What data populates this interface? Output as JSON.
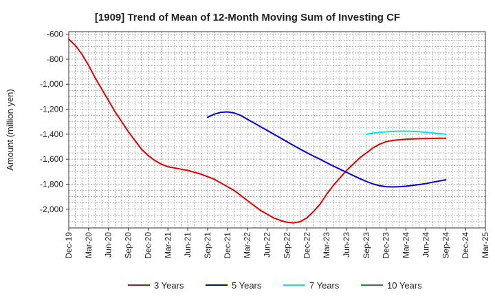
{
  "chart_data": {
    "type": "line",
    "title": "[1909]  Trend of Mean of 12-Month Moving Sum of Investing CF",
    "ylabel": "Amount (million yen)",
    "xlabel": "",
    "ylim": [
      -2150,
      -580
    ],
    "yticks": [
      -600,
      -800,
      -1000,
      -1200,
      -1400,
      -1600,
      -1800,
      -2000
    ],
    "ytick_labels": [
      "-600",
      "-800",
      "-1,000",
      "-1,200",
      "-1,400",
      "-1,600",
      "-1,800",
      "-2,000"
    ],
    "x_start": "2019-12",
    "x_end": "2025-03",
    "xtick_labels": [
      "Dec-19",
      "Mar-20",
      "Jun-20",
      "Sep-20",
      "Dec-20",
      "Mar-21",
      "Jun-21",
      "Sep-21",
      "Dec-21",
      "Mar-22",
      "Jun-22",
      "Sep-22",
      "Dec-22",
      "Mar-23",
      "Jun-23",
      "Sep-23",
      "Dec-23",
      "Mar-24",
      "Jun-24",
      "Sep-24",
      "Dec-24",
      "Mar-25"
    ],
    "grid": true,
    "legend_position": "bottom",
    "series": [
      {
        "name": "3 Years",
        "color": "#e00000",
        "points": [
          [
            "2019-12",
            -640
          ],
          [
            "2020-01",
            -690
          ],
          [
            "2020-02",
            -760
          ],
          [
            "2020-03",
            -850
          ],
          [
            "2020-04",
            -950
          ],
          [
            "2020-05",
            -1040
          ],
          [
            "2020-06",
            -1130
          ],
          [
            "2020-07",
            -1220
          ],
          [
            "2020-08",
            -1300
          ],
          [
            "2020-09",
            -1380
          ],
          [
            "2020-10",
            -1450
          ],
          [
            "2020-11",
            -1520
          ],
          [
            "2020-12",
            -1570
          ],
          [
            "2021-01",
            -1610
          ],
          [
            "2021-02",
            -1640
          ],
          [
            "2021-03",
            -1660
          ],
          [
            "2021-04",
            -1670
          ],
          [
            "2021-05",
            -1680
          ],
          [
            "2021-06",
            -1690
          ],
          [
            "2021-07",
            -1705
          ],
          [
            "2021-08",
            -1720
          ],
          [
            "2021-09",
            -1740
          ],
          [
            "2021-10",
            -1760
          ],
          [
            "2021-11",
            -1790
          ],
          [
            "2021-12",
            -1820
          ],
          [
            "2022-01",
            -1850
          ],
          [
            "2022-02",
            -1890
          ],
          [
            "2022-03",
            -1930
          ],
          [
            "2022-04",
            -1970
          ],
          [
            "2022-05",
            -2010
          ],
          [
            "2022-06",
            -2040
          ],
          [
            "2022-07",
            -2070
          ],
          [
            "2022-08",
            -2090
          ],
          [
            "2022-09",
            -2105
          ],
          [
            "2022-10",
            -2110
          ],
          [
            "2022-11",
            -2100
          ],
          [
            "2022-12",
            -2070
          ],
          [
            "2023-01",
            -2020
          ],
          [
            "2023-02",
            -1960
          ],
          [
            "2023-03",
            -1880
          ],
          [
            "2023-04",
            -1810
          ],
          [
            "2023-05",
            -1750
          ],
          [
            "2023-06",
            -1690
          ],
          [
            "2023-07",
            -1640
          ],
          [
            "2023-08",
            -1590
          ],
          [
            "2023-09",
            -1550
          ],
          [
            "2023-10",
            -1510
          ],
          [
            "2023-11",
            -1480
          ],
          [
            "2023-12",
            -1460
          ],
          [
            "2024-01",
            -1450
          ],
          [
            "2024-02",
            -1445
          ],
          [
            "2024-03",
            -1440
          ],
          [
            "2024-04",
            -1438
          ],
          [
            "2024-05",
            -1436
          ],
          [
            "2024-06",
            -1435
          ],
          [
            "2024-07",
            -1434
          ],
          [
            "2024-08",
            -1433
          ],
          [
            "2024-09",
            -1433
          ]
        ]
      },
      {
        "name": "5 Years",
        "color": "#0000cc",
        "points": [
          [
            "2021-09",
            -1265
          ],
          [
            "2021-10",
            -1240
          ],
          [
            "2021-11",
            -1225
          ],
          [
            "2021-12",
            -1222
          ],
          [
            "2022-01",
            -1230
          ],
          [
            "2022-02",
            -1250
          ],
          [
            "2022-03",
            -1280
          ],
          [
            "2022-04",
            -1310
          ],
          [
            "2022-05",
            -1340
          ],
          [
            "2022-06",
            -1370
          ],
          [
            "2022-07",
            -1400
          ],
          [
            "2022-08",
            -1430
          ],
          [
            "2022-09",
            -1460
          ],
          [
            "2022-10",
            -1490
          ],
          [
            "2022-11",
            -1520
          ],
          [
            "2022-12",
            -1548
          ],
          [
            "2023-01",
            -1575
          ],
          [
            "2023-02",
            -1600
          ],
          [
            "2023-03",
            -1628
          ],
          [
            "2023-04",
            -1655
          ],
          [
            "2023-05",
            -1680
          ],
          [
            "2023-06",
            -1705
          ],
          [
            "2023-07",
            -1730
          ],
          [
            "2023-08",
            -1755
          ],
          [
            "2023-09",
            -1778
          ],
          [
            "2023-10",
            -1798
          ],
          [
            "2023-11",
            -1812
          ],
          [
            "2023-12",
            -1820
          ],
          [
            "2024-01",
            -1822
          ],
          [
            "2024-02",
            -1820
          ],
          [
            "2024-03",
            -1816
          ],
          [
            "2024-04",
            -1810
          ],
          [
            "2024-05",
            -1803
          ],
          [
            "2024-06",
            -1795
          ],
          [
            "2024-07",
            -1785
          ],
          [
            "2024-08",
            -1775
          ],
          [
            "2024-09",
            -1765
          ]
        ]
      },
      {
        "name": "7 Years",
        "color": "#00e5ee",
        "points": [
          [
            "2023-09",
            -1400
          ],
          [
            "2023-10",
            -1392
          ],
          [
            "2023-11",
            -1386
          ],
          [
            "2023-12",
            -1381
          ],
          [
            "2024-01",
            -1378
          ],
          [
            "2024-02",
            -1376
          ],
          [
            "2024-03",
            -1376
          ],
          [
            "2024-04",
            -1377
          ],
          [
            "2024-05",
            -1380
          ],
          [
            "2024-06",
            -1385
          ],
          [
            "2024-07",
            -1390
          ],
          [
            "2024-08",
            -1395
          ],
          [
            "2024-09",
            -1400
          ]
        ]
      },
      {
        "name": "10 Years",
        "color": "#228b22",
        "points": []
      }
    ]
  }
}
